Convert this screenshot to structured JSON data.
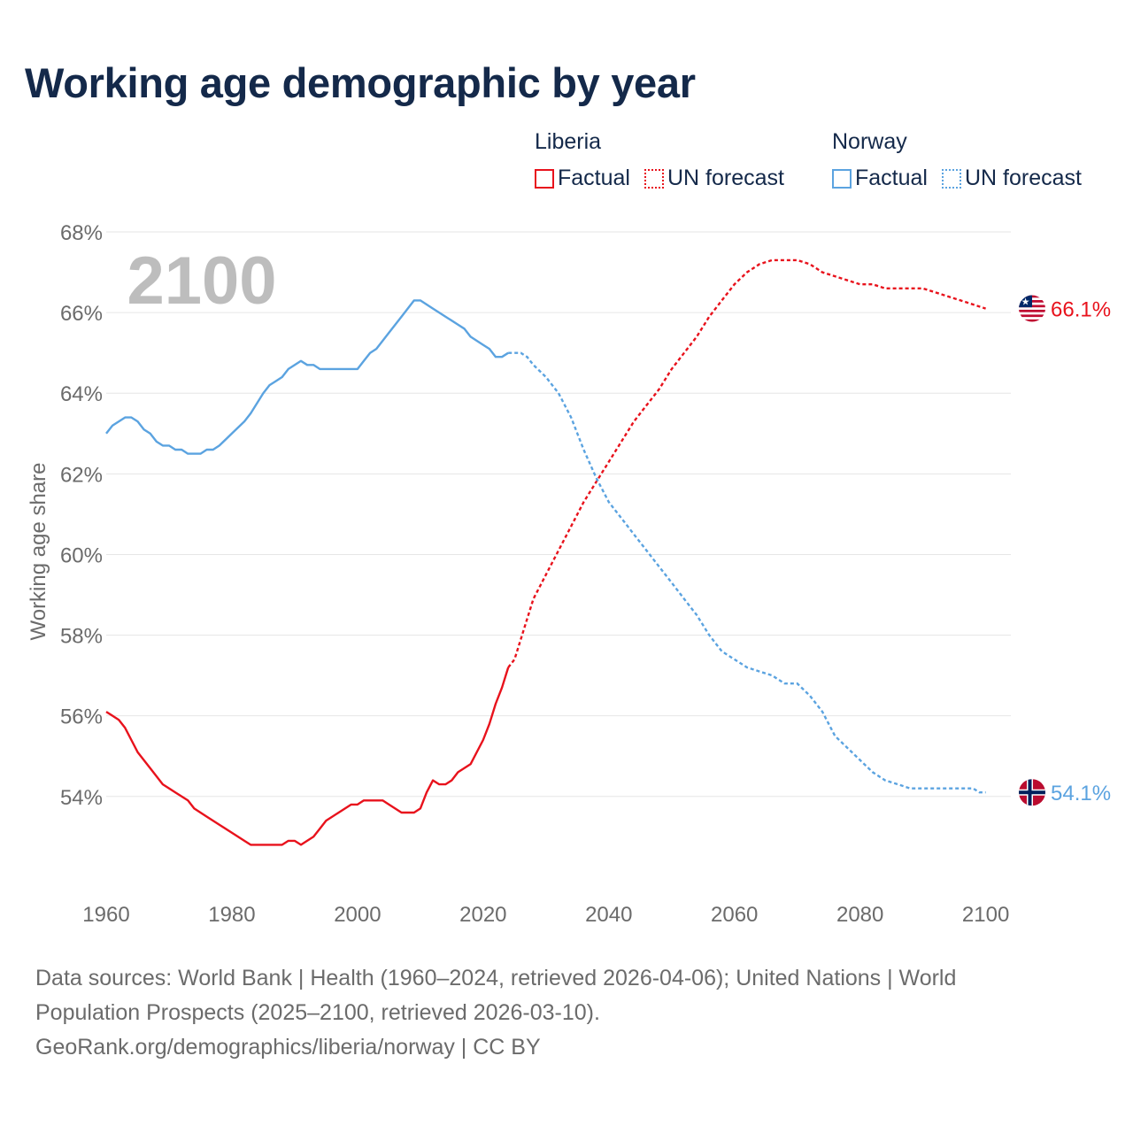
{
  "title": "Working age demographic by year",
  "legend": {
    "groups": [
      {
        "name": "Liberia",
        "color": "#e8121c",
        "items": [
          "Factual",
          "UN forecast"
        ]
      },
      {
        "name": "Norway",
        "color": "#5ba3e0",
        "items": [
          "Factual",
          "UN forecast"
        ]
      }
    ]
  },
  "footer": {
    "sources": "Data sources: World Bank | Health (1960–2024, retrieved 2026-04-06); United Nations | World Population Prospects (2025–2100, retrieved 2026-03-10).",
    "credit": "GeoRank.org/demographics/liberia/norway | CC BY"
  },
  "chart_data": {
    "type": "line",
    "title": "Working age demographic by year",
    "year_watermark": "2100",
    "ylabel": "Working age share",
    "xlabel": "",
    "xlim": [
      1960,
      2104
    ],
    "ylim": [
      51.8,
      68
    ],
    "x_ticks": [
      1960,
      1980,
      2000,
      2020,
      2040,
      2060,
      2080,
      2100
    ],
    "x_tick_labels": [
      "1960",
      "1980",
      "2000",
      "2020",
      "2040",
      "2060",
      "2080",
      "2100"
    ],
    "y_ticks": [
      54,
      56,
      58,
      60,
      62,
      64,
      66,
      68
    ],
    "y_tick_labels": [
      "54%",
      "56%",
      "58%",
      "60%",
      "62%",
      "64%",
      "66%",
      "68%"
    ],
    "grid": true,
    "forecast_start_year": 2024,
    "series": [
      {
        "name": "Liberia",
        "color": "#e8121c",
        "end_label": "66.1%",
        "flag": "liberia-flag",
        "points": [
          [
            1960,
            56.1
          ],
          [
            1962,
            55.9
          ],
          [
            1963,
            55.7
          ],
          [
            1964,
            55.4
          ],
          [
            1965,
            55.1
          ],
          [
            1967,
            54.7
          ],
          [
            1969,
            54.3
          ],
          [
            1971,
            54.1
          ],
          [
            1973,
            53.9
          ],
          [
            1974,
            53.7
          ],
          [
            1976,
            53.5
          ],
          [
            1978,
            53.3
          ],
          [
            1980,
            53.1
          ],
          [
            1982,
            52.9
          ],
          [
            1983,
            52.8
          ],
          [
            1988,
            52.8
          ],
          [
            1989,
            52.9
          ],
          [
            1990,
            52.9
          ],
          [
            1991,
            52.8
          ],
          [
            1993,
            53.0
          ],
          [
            1994,
            53.2
          ],
          [
            1995,
            53.4
          ],
          [
            1997,
            53.6
          ],
          [
            1999,
            53.8
          ],
          [
            2000,
            53.8
          ],
          [
            2001,
            53.9
          ],
          [
            2004,
            53.9
          ],
          [
            2005,
            53.8
          ],
          [
            2007,
            53.6
          ],
          [
            2009,
            53.6
          ],
          [
            2010,
            53.7
          ],
          [
            2011,
            54.1
          ],
          [
            2012,
            54.4
          ],
          [
            2013,
            54.3
          ],
          [
            2014,
            54.3
          ],
          [
            2015,
            54.4
          ],
          [
            2016,
            54.6
          ],
          [
            2018,
            54.8
          ],
          [
            2020,
            55.4
          ],
          [
            2021,
            55.8
          ],
          [
            2022,
            56.3
          ],
          [
            2023,
            56.7
          ],
          [
            2024,
            57.2
          ],
          [
            2025,
            57.4
          ],
          [
            2026,
            57.9
          ],
          [
            2027,
            58.4
          ],
          [
            2028,
            58.9
          ],
          [
            2029,
            59.2
          ],
          [
            2030,
            59.5
          ],
          [
            2032,
            60.1
          ],
          [
            2034,
            60.7
          ],
          [
            2036,
            61.3
          ],
          [
            2038,
            61.8
          ],
          [
            2040,
            62.3
          ],
          [
            2042,
            62.8
          ],
          [
            2044,
            63.3
          ],
          [
            2046,
            63.7
          ],
          [
            2048,
            64.1
          ],
          [
            2050,
            64.6
          ],
          [
            2052,
            65.0
          ],
          [
            2054,
            65.4
          ],
          [
            2056,
            65.9
          ],
          [
            2058,
            66.3
          ],
          [
            2060,
            66.7
          ],
          [
            2062,
            67.0
          ],
          [
            2064,
            67.2
          ],
          [
            2066,
            67.3
          ],
          [
            2070,
            67.3
          ],
          [
            2072,
            67.2
          ],
          [
            2074,
            67.0
          ],
          [
            2076,
            66.9
          ],
          [
            2078,
            66.8
          ],
          [
            2080,
            66.7
          ],
          [
            2082,
            66.7
          ],
          [
            2084,
            66.6
          ],
          [
            2090,
            66.6
          ],
          [
            2092,
            66.5
          ],
          [
            2094,
            66.4
          ],
          [
            2096,
            66.3
          ],
          [
            2098,
            66.2
          ],
          [
            2100,
            66.1
          ]
        ]
      },
      {
        "name": "Norway",
        "color": "#5ba3e0",
        "end_label": "54.1%",
        "flag": "norway-flag",
        "points": [
          [
            1960,
            63.0
          ],
          [
            1961,
            63.2
          ],
          [
            1963,
            63.4
          ],
          [
            1964,
            63.4
          ],
          [
            1965,
            63.3
          ],
          [
            1966,
            63.1
          ],
          [
            1967,
            63.0
          ],
          [
            1968,
            62.8
          ],
          [
            1969,
            62.7
          ],
          [
            1970,
            62.7
          ],
          [
            1971,
            62.6
          ],
          [
            1972,
            62.6
          ],
          [
            1973,
            62.5
          ],
          [
            1975,
            62.5
          ],
          [
            1976,
            62.6
          ],
          [
            1977,
            62.6
          ],
          [
            1978,
            62.7
          ],
          [
            1980,
            63.0
          ],
          [
            1982,
            63.3
          ],
          [
            1983,
            63.5
          ],
          [
            1985,
            64.0
          ],
          [
            1986,
            64.2
          ],
          [
            1987,
            64.3
          ],
          [
            1988,
            64.4
          ],
          [
            1989,
            64.6
          ],
          [
            1991,
            64.8
          ],
          [
            1992,
            64.7
          ],
          [
            1993,
            64.7
          ],
          [
            1994,
            64.6
          ],
          [
            2000,
            64.6
          ],
          [
            2001,
            64.8
          ],
          [
            2002,
            65.0
          ],
          [
            2003,
            65.1
          ],
          [
            2005,
            65.5
          ],
          [
            2007,
            65.9
          ],
          [
            2009,
            66.3
          ],
          [
            2010,
            66.3
          ],
          [
            2012,
            66.1
          ],
          [
            2014,
            65.9
          ],
          [
            2016,
            65.7
          ],
          [
            2017,
            65.6
          ],
          [
            2018,
            65.4
          ],
          [
            2020,
            65.2
          ],
          [
            2021,
            65.1
          ],
          [
            2022,
            64.9
          ],
          [
            2023,
            64.9
          ],
          [
            2024,
            65.0
          ],
          [
            2026,
            65.0
          ],
          [
            2027,
            64.9
          ],
          [
            2028,
            64.7
          ],
          [
            2030,
            64.4
          ],
          [
            2032,
            64.0
          ],
          [
            2034,
            63.4
          ],
          [
            2036,
            62.6
          ],
          [
            2038,
            61.9
          ],
          [
            2040,
            61.3
          ],
          [
            2042,
            60.9
          ],
          [
            2044,
            60.5
          ],
          [
            2046,
            60.1
          ],
          [
            2048,
            59.7
          ],
          [
            2050,
            59.3
          ],
          [
            2052,
            58.9
          ],
          [
            2054,
            58.5
          ],
          [
            2056,
            58.0
          ],
          [
            2058,
            57.6
          ],
          [
            2060,
            57.4
          ],
          [
            2062,
            57.2
          ],
          [
            2064,
            57.1
          ],
          [
            2066,
            57.0
          ],
          [
            2068,
            56.8
          ],
          [
            2070,
            56.8
          ],
          [
            2072,
            56.5
          ],
          [
            2074,
            56.1
          ],
          [
            2076,
            55.5
          ],
          [
            2078,
            55.2
          ],
          [
            2080,
            54.9
          ],
          [
            2082,
            54.6
          ],
          [
            2084,
            54.4
          ],
          [
            2086,
            54.3
          ],
          [
            2088,
            54.2
          ],
          [
            2098,
            54.2
          ],
          [
            2099,
            54.1
          ],
          [
            2100,
            54.1
          ]
        ]
      }
    ]
  }
}
